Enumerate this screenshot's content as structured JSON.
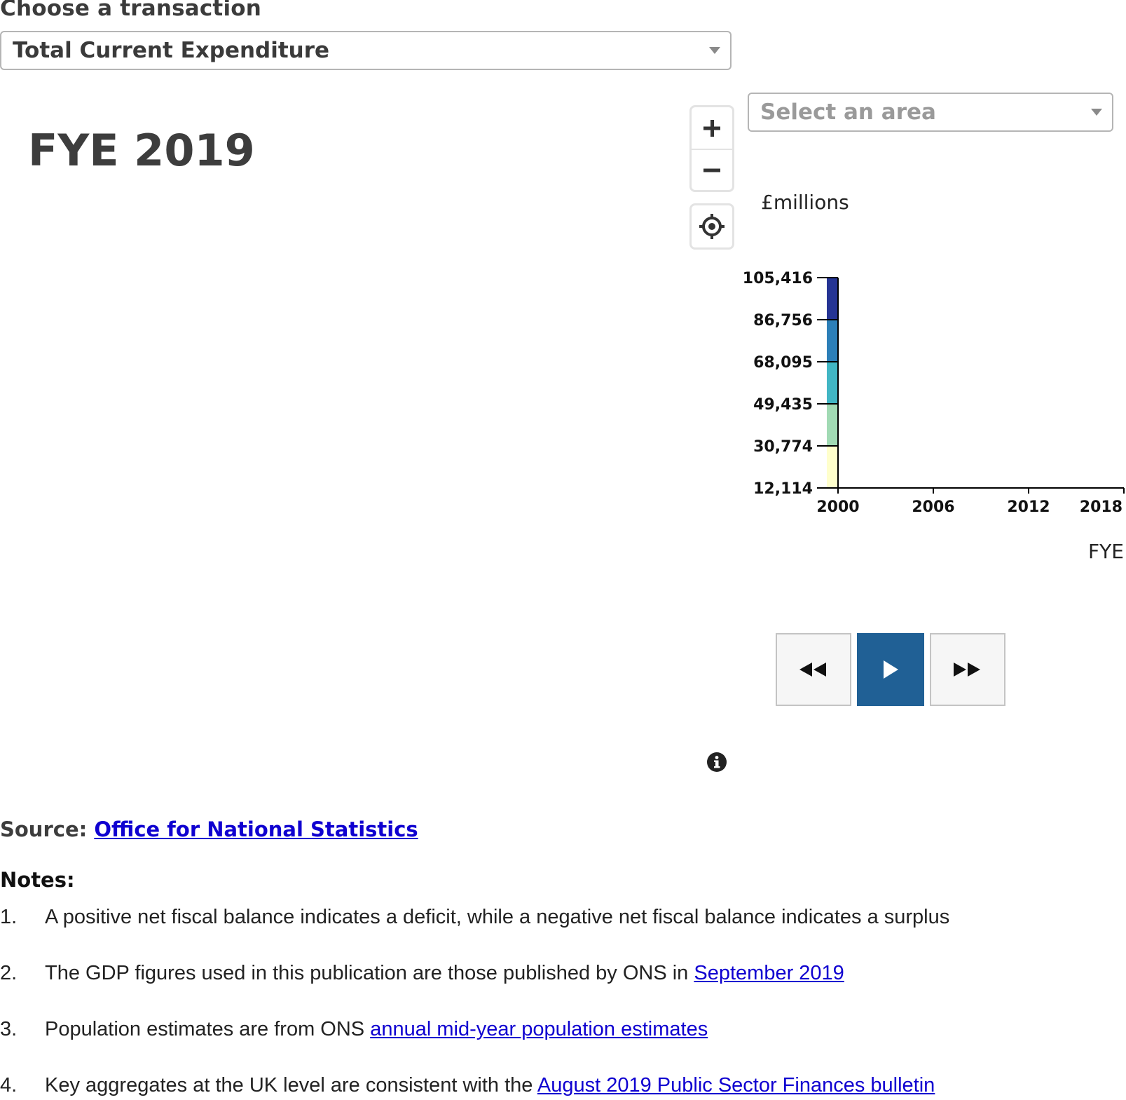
{
  "transaction": {
    "label": "Choose a transaction",
    "selected": "Total Current Expenditure"
  },
  "map": {
    "year_title": "FYE 2019",
    "zoom_in_icon": "plus-icon",
    "zoom_out_icon": "minus-icon",
    "locate_icon": "crosshair-icon"
  },
  "area": {
    "placeholder": "Select an area"
  },
  "chart_data": {
    "type": "heatmap",
    "ylabel": "£millions",
    "xlabel": "FYE",
    "y_ticks": [
      "105,416",
      "86,756",
      "68,095",
      "49,435",
      "30,774",
      "12,114"
    ],
    "y_tick_values": [
      105416,
      86756,
      68095,
      49435,
      30774,
      12114
    ],
    "x_ticks": [
      "2000",
      "2006",
      "2012",
      "2018"
    ],
    "x_tick_values": [
      2000,
      2006,
      2012,
      2018
    ],
    "ylim": [
      12114,
      105416
    ],
    "xlim": [
      2000,
      2019
    ],
    "color_scale": [
      "#ffffcc",
      "#a1dab4",
      "#41b6c4",
      "#2c7fb8",
      "#253494"
    ]
  },
  "player": {
    "rewind_icon": "rewind-icon",
    "play_icon": "play-icon",
    "forward_icon": "fast-forward-icon",
    "play_color": "#206095"
  },
  "info_icon": "info-icon",
  "source": {
    "label": "Source:",
    "link_text": "Office for National Statistics"
  },
  "notes": {
    "heading": "Notes:",
    "items": [
      {
        "num": "1.",
        "text": "A positive net fiscal balance indicates a deficit, while a negative net fiscal balance indicates a surplus",
        "link": ""
      },
      {
        "num": "2.",
        "text": "The GDP figures used in this publication are those published by ONS in ",
        "link": "September 2019"
      },
      {
        "num": "3.",
        "text": "Population estimates are from ONS ",
        "link": "annual mid-year population estimates"
      },
      {
        "num": "4.",
        "text": "Key aggregates at the UK level are consistent with the ",
        "link": "August 2019 Public Sector Finances bulletin"
      }
    ]
  }
}
